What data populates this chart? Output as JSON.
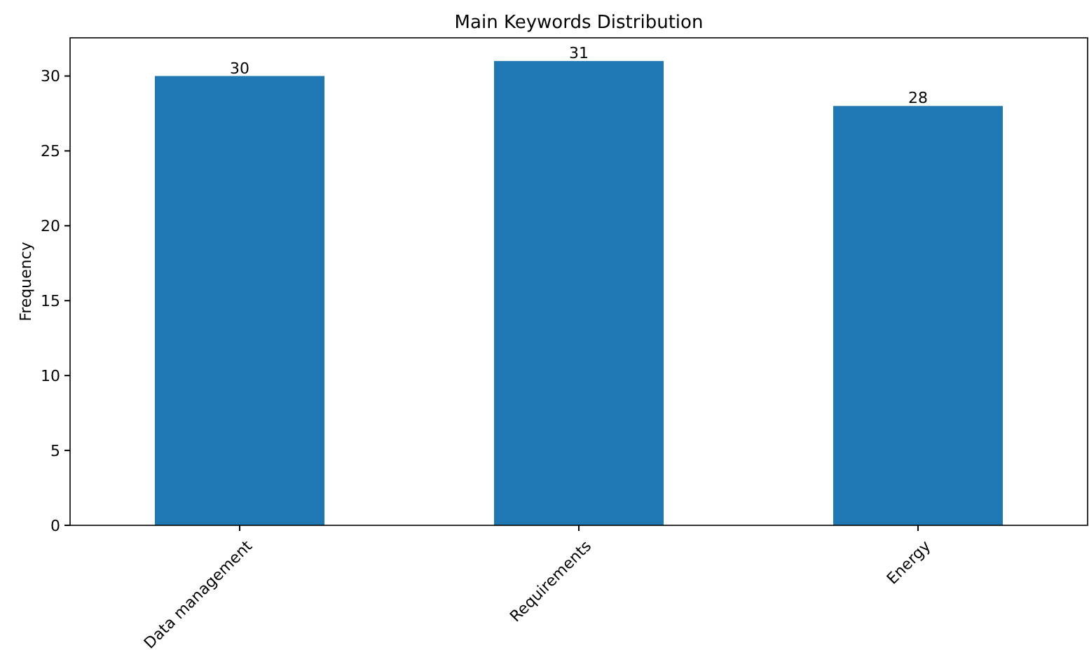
{
  "chart_data": {
    "type": "bar",
    "title": "Main Keywords Distribution",
    "ylabel": "Frequency",
    "categories": [
      "Data management",
      "Requirements",
      "Energy"
    ],
    "values": [
      30,
      31,
      28
    ],
    "color": "#1f77b4",
    "ylim": [
      0,
      32.55
    ],
    "yticks": [
      0,
      5,
      10,
      15,
      20,
      25,
      30
    ],
    "data_labels": true
  }
}
